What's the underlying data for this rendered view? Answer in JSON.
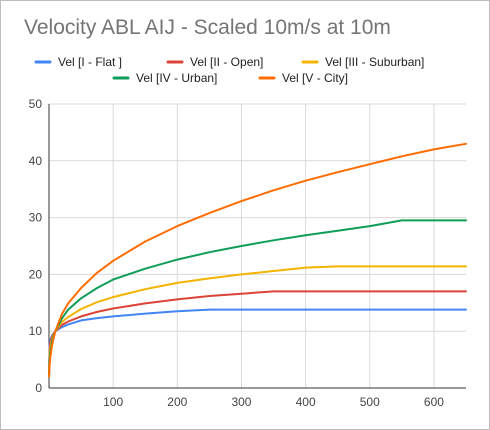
{
  "chart_data": {
    "type": "line",
    "title": "Velocity ABL AIJ - Scaled 10m/s at 10m",
    "xlabel": "",
    "ylabel": "",
    "xlim": [
      0,
      650
    ],
    "ylim": [
      0,
      50
    ],
    "x_ticks": [
      100,
      200,
      300,
      400,
      500,
      600
    ],
    "y_ticks": [
      0,
      10,
      20,
      30,
      40,
      50
    ],
    "grid": true,
    "legend_position": "top",
    "series": [
      {
        "name": "Vel [I - Flat ]",
        "color": "#4285F4",
        "x": [
          0,
          1,
          2,
          5,
          10,
          20,
          30,
          50,
          75,
          100,
          150,
          200,
          250,
          300,
          400,
          500,
          600,
          650
        ],
        "y": [
          2.0,
          7.6,
          8.4,
          9.3,
          10.0,
          10.7,
          11.2,
          11.9,
          12.3,
          12.6,
          13.1,
          13.5,
          13.8,
          13.8,
          13.8,
          13.8,
          13.8,
          13.8
        ]
      },
      {
        "name": "Vel [II - Open]",
        "color": "#DB4437",
        "x": [
          0,
          1,
          2,
          5,
          10,
          20,
          30,
          50,
          75,
          100,
          150,
          200,
          250,
          300,
          350,
          400,
          500,
          600,
          650
        ],
        "y": [
          2.0,
          6.9,
          7.9,
          9.1,
          10.0,
          11.1,
          11.7,
          12.6,
          13.4,
          14.0,
          14.9,
          15.6,
          16.2,
          16.6,
          17.0,
          17.0,
          17.0,
          17.0,
          17.0
        ]
      },
      {
        "name": "Vel [III - Suburban]",
        "color": "#F4B400",
        "x": [
          0,
          1,
          2,
          5,
          10,
          20,
          30,
          50,
          75,
          100,
          150,
          200,
          250,
          300,
          350,
          400,
          450,
          500,
          600,
          650
        ],
        "y": [
          2.0,
          6.0,
          7.1,
          8.7,
          10.0,
          11.6,
          12.5,
          13.9,
          15.1,
          16.0,
          17.4,
          18.5,
          19.3,
          20.0,
          20.6,
          21.2,
          21.4,
          21.4,
          21.4,
          21.4
        ]
      },
      {
        "name": "Vel [IV - Urban]",
        "color": "#0F9D58",
        "x": [
          0,
          1,
          2,
          5,
          10,
          20,
          30,
          50,
          75,
          100,
          150,
          200,
          250,
          300,
          350,
          400,
          450,
          500,
          550,
          600,
          650
        ],
        "y": [
          2.0,
          5.0,
          6.3,
          8.3,
          10.0,
          12.2,
          13.8,
          15.8,
          17.6,
          19.1,
          21.0,
          22.6,
          23.9,
          25.0,
          26.0,
          26.9,
          27.7,
          28.5,
          29.5,
          29.5,
          29.5
        ]
      },
      {
        "name": "Vel [V - City]",
        "color": "#FF6D00",
        "x": [
          0,
          1,
          2,
          5,
          10,
          20,
          30,
          50,
          75,
          100,
          150,
          200,
          250,
          300,
          350,
          400,
          450,
          500,
          550,
          600,
          650
        ],
        "y": [
          2.0,
          4.0,
          5.4,
          7.7,
          10.0,
          13.0,
          14.9,
          17.6,
          20.3,
          22.4,
          25.8,
          28.5,
          30.8,
          32.9,
          34.8,
          36.5,
          38.0,
          39.4,
          40.8,
          42.0,
          43.0
        ]
      }
    ]
  }
}
